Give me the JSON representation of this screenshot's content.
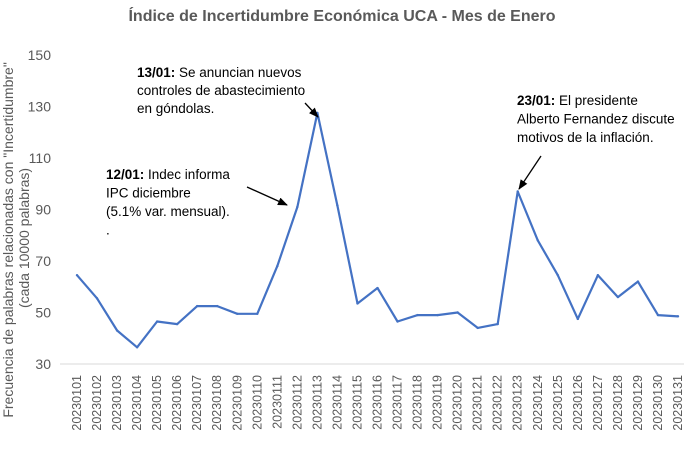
{
  "chart_data": {
    "type": "line",
    "title": "Índice de Incertidumbre Económica UCA - Mes de Enero",
    "ylabel_lines": [
      "Frecuencia de palabras relacionadas con \"Incertidumbre\"",
      "(cada 10000 palabras)"
    ],
    "xlabel": "",
    "ylim": [
      30,
      150
    ],
    "yticks": [
      30,
      50,
      70,
      90,
      110,
      130,
      150
    ],
    "grid": false,
    "legend": "none",
    "line_color": "#4472c4",
    "x": [
      "20230101",
      "20230102",
      "20230103",
      "20230104",
      "20230105",
      "20230106",
      "20230107",
      "20230108",
      "20230109",
      "20230110",
      "20230111",
      "20230112",
      "20230113",
      "20230114",
      "20230115",
      "20230116",
      "20230117",
      "20230118",
      "20230119",
      "20230120",
      "20230121",
      "20230122",
      "20230123",
      "20230124",
      "20230125",
      "20230126",
      "20230127",
      "20230128",
      "20230129",
      "20230130",
      "20230131"
    ],
    "series": [
      {
        "values": [
          64.5,
          55.5,
          43,
          36.5,
          46.5,
          45.5,
          52.5,
          52.5,
          49.5,
          49.5,
          68,
          91,
          127.5,
          91.5,
          53.5,
          59.5,
          46.5,
          49,
          49,
          50,
          44,
          45.5,
          97,
          78,
          64.5,
          47.5,
          64.5,
          56,
          62,
          49,
          48.5
        ]
      }
    ],
    "annotations": [
      {
        "bold": "13/01:",
        "lines": [
          " Se anuncian nuevos",
          "controles de abastecimiento",
          "en góndolas."
        ],
        "target_index": 12
      },
      {
        "bold": "12/01:",
        "lines": [
          " Indec informa",
          "IPC diciembre",
          "(5.1% var. mensual).",
          "."
        ],
        "target_index": 11
      },
      {
        "bold": "23/01:",
        "lines": [
          " El presidente",
          "Alberto Fernandez discute",
          "motivos de la inflación."
        ],
        "target_index": 22
      }
    ]
  }
}
